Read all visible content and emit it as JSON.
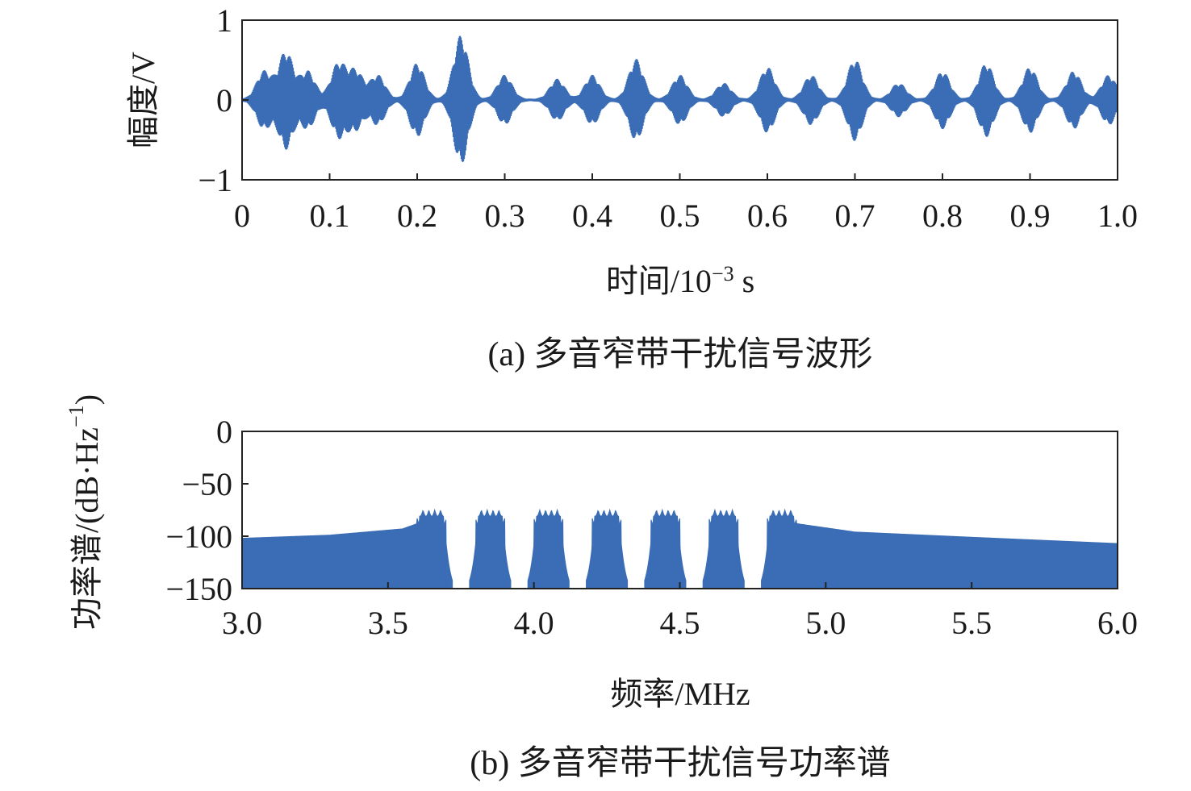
{
  "chart_data": [
    {
      "type": "line",
      "xlabel_main": "时间/10",
      "xlabel_exp": "−3",
      "xlabel_unit": " s",
      "ylabel": "幅度/V",
      "caption": "(a) 多音窄带干扰信号波形",
      "xlim": [
        0,
        1.0
      ],
      "ylim": [
        -1,
        1
      ],
      "xticks": [
        0,
        0.1,
        0.2,
        0.3,
        0.4,
        0.5,
        0.6,
        0.7,
        0.8,
        0.9,
        1.0
      ],
      "xtick_labels": [
        "0",
        "0.1",
        "0.2",
        "0.3",
        "0.4",
        "0.5",
        "0.6",
        "0.7",
        "0.8",
        "0.9",
        "1.0"
      ],
      "yticks": [
        -1,
        0,
        1
      ],
      "ytick_labels": [
        "−1",
        "0",
        "1"
      ],
      "color": "#3a6db5",
      "bursts": [
        {
          "t": 0.025,
          "amp": 0.35
        },
        {
          "t": 0.05,
          "amp": 0.6
        },
        {
          "t": 0.075,
          "amp": 0.35
        },
        {
          "t": 0.11,
          "amp": 0.45
        },
        {
          "t": 0.13,
          "amp": 0.35
        },
        {
          "t": 0.155,
          "amp": 0.3
        },
        {
          "t": 0.2,
          "amp": 0.45
        },
        {
          "t": 0.25,
          "amp": 0.8
        },
        {
          "t": 0.3,
          "amp": 0.3
        },
        {
          "t": 0.36,
          "amp": 0.25
        },
        {
          "t": 0.4,
          "amp": 0.3
        },
        {
          "t": 0.45,
          "amp": 0.5
        },
        {
          "t": 0.5,
          "amp": 0.3
        },
        {
          "t": 0.55,
          "amp": 0.2
        },
        {
          "t": 0.6,
          "amp": 0.4
        },
        {
          "t": 0.65,
          "amp": 0.3
        },
        {
          "t": 0.7,
          "amp": 0.5
        },
        {
          "t": 0.75,
          "amp": 0.2
        },
        {
          "t": 0.8,
          "amp": 0.35
        },
        {
          "t": 0.85,
          "amp": 0.45
        },
        {
          "t": 0.9,
          "amp": 0.4
        },
        {
          "t": 0.95,
          "amp": 0.35
        },
        {
          "t": 0.99,
          "amp": 0.3
        }
      ]
    },
    {
      "type": "area",
      "xlabel": "频率/MHz",
      "ylabel_main": "功率谱/(dB·Hz",
      "ylabel_exp": "−1",
      "ylabel_close": ")",
      "caption": "(b) 多音窄带干扰信号功率谱",
      "xlim": [
        3.0,
        6.0
      ],
      "ylim": [
        -150,
        0
      ],
      "xticks": [
        3.0,
        3.5,
        4.0,
        4.5,
        5.0,
        5.5,
        6.0
      ],
      "xtick_labels": [
        "3.0",
        "3.5",
        "4.0",
        "4.5",
        "5.0",
        "5.5",
        "6.0"
      ],
      "yticks": [
        0,
        -50,
        -100,
        -150
      ],
      "ytick_labels": [
        "0",
        "−50",
        "−100",
        "−150"
      ],
      "color": "#3a6db5",
      "envelope": [
        {
          "f": 3.0,
          "p": -102
        },
        {
          "f": 3.3,
          "p": -99
        },
        {
          "f": 3.55,
          "p": -93
        },
        {
          "f": 3.6,
          "p": -88
        },
        {
          "f": 4.9,
          "p": -88
        },
        {
          "f": 5.1,
          "p": -96
        },
        {
          "f": 5.5,
          "p": -101
        },
        {
          "f": 6.0,
          "p": -107
        }
      ],
      "bands": [
        {
          "start": 3.6,
          "end": 3.7,
          "peak": -75
        },
        {
          "start": 3.8,
          "end": 3.9,
          "peak": -75
        },
        {
          "start": 4.0,
          "end": 4.1,
          "peak": -75
        },
        {
          "start": 4.2,
          "end": 4.3,
          "peak": -75
        },
        {
          "start": 4.4,
          "end": 4.5,
          "peak": -75
        },
        {
          "start": 4.6,
          "end": 4.7,
          "peak": -75
        },
        {
          "start": 4.8,
          "end": 4.9,
          "peak": -75
        }
      ]
    }
  ]
}
